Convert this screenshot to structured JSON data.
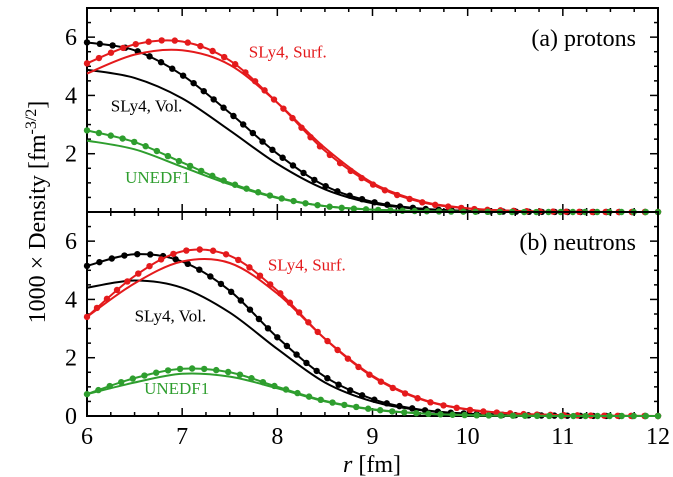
{
  "chart_data": {
    "type": "line",
    "xlabel_italic": "r",
    "xlabel_rest": " [fm]",
    "ylabel_main": "1000 × Density [fm",
    "ylabel_sup": "-3/2",
    "ylabel_close": "]",
    "xlim": [
      6,
      12
    ],
    "xticks": [
      "6",
      "7",
      "8",
      "9",
      "10",
      "11",
      "12"
    ],
    "panels": [
      {
        "label": "(a) protons",
        "ylim": [
          0,
          7
        ],
        "yticks": [
          "2",
          "4",
          "6"
        ],
        "series": [
          {
            "color": "#000000",
            "markers": true,
            "x": [
              6.0,
              6.5,
              7.0,
              7.5,
              8.0,
              8.5,
              9.0,
              9.5,
              10.0,
              10.5,
              11.0,
              11.5,
              12.0
            ],
            "y": [
              5.82,
              5.55,
              4.7,
              3.4,
              2.0,
              0.9,
              0.35,
              0.12,
              0.04,
              0.01,
              0.0,
              0.0,
              0.0
            ]
          },
          {
            "color": "#000000",
            "markers": false,
            "x": [
              6.0,
              6.5,
              7.0,
              7.5,
              8.0,
              8.5,
              9.0,
              9.5,
              10.0,
              10.5,
              11.0,
              11.5,
              12.0
            ],
            "y": [
              4.88,
              4.6,
              3.9,
              2.8,
              1.65,
              0.78,
              0.3,
              0.1,
              0.03,
              0.01,
              0.0,
              0.0,
              0.0
            ]
          },
          {
            "color": "#e41a1c",
            "markers": true,
            "x": [
              6.0,
              6.5,
              7.0,
              7.5,
              8.0,
              8.5,
              9.0,
              9.5,
              10.0,
              10.5,
              11.0,
              11.5,
              12.0
            ],
            "y": [
              5.1,
              5.75,
              5.85,
              5.2,
              3.75,
              2.1,
              0.95,
              0.35,
              0.12,
              0.04,
              0.01,
              0.0,
              0.0
            ]
          },
          {
            "color": "#e41a1c",
            "markers": false,
            "x": [
              6.0,
              6.5,
              7.0,
              7.5,
              8.0,
              8.5,
              9.0,
              9.5,
              10.0,
              10.5,
              11.0,
              11.5,
              12.0
            ],
            "y": [
              4.75,
              5.4,
              5.55,
              5.05,
              3.75,
              2.2,
              1.0,
              0.38,
              0.13,
              0.04,
              0.01,
              0.0,
              0.0
            ]
          },
          {
            "color": "#2e9e2e",
            "markers": true,
            "x": [
              6.0,
              6.5,
              7.0,
              7.5,
              8.0,
              8.5,
              9.0,
              9.5,
              10.0,
              10.5,
              11.0,
              11.5,
              12.0
            ],
            "y": [
              2.8,
              2.4,
              1.7,
              1.0,
              0.5,
              0.2,
              0.08,
              0.03,
              0.01,
              0.0,
              0.0,
              0.0,
              0.0
            ]
          },
          {
            "color": "#2e9e2e",
            "markers": false,
            "x": [
              6.0,
              6.5,
              7.0,
              7.5,
              8.0,
              8.5,
              9.0,
              9.5,
              10.0,
              10.5,
              11.0,
              11.5,
              12.0
            ],
            "y": [
              2.45,
              2.15,
              1.55,
              0.95,
              0.48,
              0.2,
              0.08,
              0.03,
              0.01,
              0.0,
              0.0,
              0.0,
              0.0
            ]
          }
        ],
        "annotations": [
          {
            "text": "SLy4, Surf.",
            "color": "#e41a1c",
            "x": 7.7,
            "y": 5.3
          },
          {
            "text": "SLy4, Vol.",
            "color": "#000000",
            "x": 6.25,
            "y": 3.45
          },
          {
            "text": "UNEDF1",
            "color": "#2e9e2e",
            "x": 6.4,
            "y": 1.0
          }
        ]
      },
      {
        "label": "(b) neutrons",
        "ylim": [
          0,
          7
        ],
        "yticks": [
          "0",
          "2",
          "4",
          "6"
        ],
        "series": [
          {
            "color": "#000000",
            "markers": true,
            "x": [
              6.0,
              6.5,
              7.0,
              7.5,
              8.0,
              8.5,
              9.0,
              9.5,
              10.0,
              10.5,
              11.0,
              11.5,
              12.0
            ],
            "y": [
              5.15,
              5.55,
              5.3,
              4.3,
              2.7,
              1.35,
              0.58,
              0.22,
              0.08,
              0.03,
              0.01,
              0.0,
              0.0
            ]
          },
          {
            "color": "#000000",
            "markers": false,
            "x": [
              6.0,
              6.5,
              7.0,
              7.5,
              8.0,
              8.5,
              9.0,
              9.5,
              10.0,
              10.5,
              11.0,
              11.5,
              12.0
            ],
            "y": [
              4.4,
              4.65,
              4.4,
              3.55,
              2.3,
              1.15,
              0.5,
              0.2,
              0.07,
              0.02,
              0.01,
              0.0,
              0.0
            ]
          },
          {
            "color": "#e41a1c",
            "markers": true,
            "x": [
              6.0,
              6.5,
              7.0,
              7.5,
              8.0,
              8.5,
              9.0,
              9.5,
              10.0,
              10.5,
              11.0,
              11.5,
              12.0
            ],
            "y": [
              3.4,
              4.8,
              5.65,
              5.5,
              4.3,
              2.65,
              1.35,
              0.58,
              0.22,
              0.08,
              0.03,
              0.01,
              0.0
            ]
          },
          {
            "color": "#e41a1c",
            "markers": false,
            "x": [
              6.0,
              6.5,
              7.0,
              7.5,
              8.0,
              8.5,
              9.0,
              9.5,
              10.0,
              10.5,
              11.0,
              11.5,
              12.0
            ],
            "y": [
              3.4,
              4.55,
              5.3,
              5.25,
              4.2,
              2.65,
              1.38,
              0.6,
              0.23,
              0.08,
              0.03,
              0.01,
              0.0
            ]
          },
          {
            "color": "#2e9e2e",
            "markers": true,
            "x": [
              6.0,
              6.5,
              7.0,
              7.5,
              8.0,
              8.5,
              9.0,
              9.5,
              10.0,
              10.5,
              11.0,
              11.5,
              12.0
            ],
            "y": [
              0.75,
              1.3,
              1.62,
              1.5,
              1.0,
              0.52,
              0.23,
              0.09,
              0.03,
              0.01,
              0.0,
              0.0,
              0.0
            ]
          },
          {
            "color": "#2e9e2e",
            "markers": false,
            "x": [
              6.0,
              6.5,
              7.0,
              7.5,
              8.0,
              8.5,
              9.0,
              9.5,
              10.0,
              10.5,
              11.0,
              11.5,
              12.0
            ],
            "y": [
              0.75,
              1.15,
              1.45,
              1.35,
              0.95,
              0.5,
              0.22,
              0.09,
              0.03,
              0.01,
              0.0,
              0.0,
              0.0
            ]
          }
        ],
        "annotations": [
          {
            "text": "SLy4, Surf.",
            "color": "#e41a1c",
            "x": 7.9,
            "y": 5.0
          },
          {
            "text": "SLy4, Vol.",
            "color": "#000000",
            "x": 6.5,
            "y": 3.25
          },
          {
            "text": "UNEDF1",
            "color": "#2e9e2e",
            "x": 6.6,
            "y": 0.75
          }
        ]
      }
    ]
  }
}
